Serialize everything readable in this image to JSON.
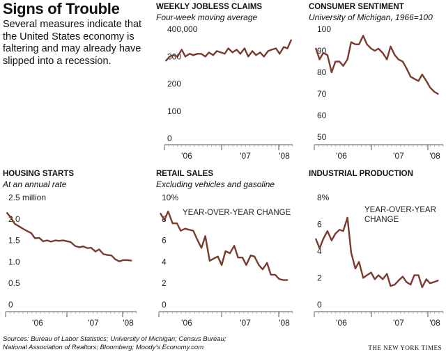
{
  "title": "Signs of Trouble",
  "intro": "Several measures indicate that the United States economy is faltering and may already have slipped into a recession.",
  "sources_line1": "Sources: Bureau of Labor Statistics; University of Michigan; Census Bureau;",
  "sources_line2": "National Association of Realtors; Bloomberg; Moody’s Economy.com",
  "credit": "THE NEW YORK TIMES",
  "line_color": "#7a3b2e",
  "chart_data": [
    {
      "id": "jobless",
      "type": "line",
      "title": "WEEKLY JOBLESS CLAIMS",
      "subtitle": "Four-week moving average",
      "ylim": [
        0,
        400000
      ],
      "yticks": [
        0,
        100,
        200,
        300,
        400000
      ],
      "ytick_labels": [
        "0",
        "100",
        "200",
        "300",
        "400,000"
      ],
      "xlim": [
        2005.75,
        2008.2
      ],
      "xtick_labels": [
        "'06",
        "'07",
        "'08"
      ],
      "x": [
        2005.78,
        2005.85,
        2005.92,
        2006.0,
        2006.08,
        2006.15,
        2006.23,
        2006.3,
        2006.38,
        2006.45,
        2006.53,
        2006.6,
        2006.68,
        2006.75,
        2006.83,
        2006.9,
        2006.97,
        2007.05,
        2007.13,
        2007.2,
        2007.28,
        2007.35,
        2007.43,
        2007.5,
        2007.58,
        2007.65,
        2007.73,
        2007.8,
        2007.88,
        2007.95,
        2008.03,
        2008.1,
        2008.17
      ],
      "values": [
        285000,
        300000,
        305000,
        300000,
        325000,
        300000,
        310000,
        305000,
        310000,
        310000,
        300000,
        315000,
        305000,
        320000,
        315000,
        310000,
        330000,
        315000,
        325000,
        310000,
        330000,
        300000,
        320000,
        305000,
        315000,
        300000,
        320000,
        325000,
        330000,
        310000,
        335000,
        330000,
        360000
      ]
    },
    {
      "id": "sentiment",
      "type": "line",
      "title": "CONSUMER SENTIMENT",
      "subtitle": "University of Michigan, 1966=100",
      "ylim": [
        50,
        100
      ],
      "yticks": [
        50,
        60,
        70,
        80,
        90,
        100
      ],
      "ytick_labels": [
        "50",
        "60",
        "70",
        "80",
        "90",
        "100"
      ],
      "xlim": [
        2005.75,
        2008.2
      ],
      "xtick_labels": [
        "'06",
        "'07",
        "'08"
      ],
      "x": [
        2005.78,
        2005.85,
        2005.92,
        2006.0,
        2006.08,
        2006.15,
        2006.23,
        2006.3,
        2006.38,
        2006.45,
        2006.53,
        2006.6,
        2006.68,
        2006.75,
        2006.83,
        2006.9,
        2006.97,
        2007.05,
        2007.13,
        2007.2,
        2007.28,
        2007.35,
        2007.43,
        2007.5,
        2007.58,
        2007.65,
        2007.73,
        2007.8,
        2007.88,
        2007.95,
        2008.03,
        2008.1
      ],
      "values": [
        91,
        86,
        89,
        88,
        80,
        85,
        85,
        83,
        86,
        94,
        93,
        93,
        97,
        93,
        91,
        90,
        91,
        89,
        86,
        92,
        88,
        86,
        85,
        82,
        78,
        77,
        76,
        79,
        76,
        73,
        71,
        70
      ]
    },
    {
      "id": "housing",
      "type": "line",
      "title": "HOUSING STARTS",
      "subtitle": "At an annual rate",
      "ylim": [
        0,
        2.5
      ],
      "yticks": [
        0,
        0.5,
        1.0,
        1.5,
        2.0,
        2.5
      ],
      "ytick_labels": [
        "0",
        "0.5",
        "1.0",
        "1.5",
        "2.0",
        "2.5 million"
      ],
      "xlim": [
        2005.75,
        2008.2
      ],
      "xtick_labels": [
        "'06",
        "'07",
        "'08"
      ],
      "x": [
        2005.78,
        2005.85,
        2005.92,
        2006.0,
        2006.08,
        2006.15,
        2006.23,
        2006.3,
        2006.38,
        2006.45,
        2006.53,
        2006.6,
        2006.68,
        2006.75,
        2006.83,
        2006.9,
        2006.97,
        2007.05,
        2007.13,
        2007.2,
        2007.28,
        2007.35,
        2007.43,
        2007.5,
        2007.58,
        2007.65,
        2007.73,
        2007.8,
        2007.88,
        2007.95,
        2008.03,
        2008.1
      ],
      "values": [
        2.14,
        2.03,
        1.89,
        1.83,
        1.77,
        1.72,
        1.67,
        1.55,
        1.56,
        1.48,
        1.5,
        1.47,
        1.5,
        1.49,
        1.5,
        1.48,
        1.46,
        1.37,
        1.34,
        1.36,
        1.32,
        1.33,
        1.24,
        1.29,
        1.18,
        1.16,
        1.15,
        1.06,
        1.01,
        1.04,
        1.04,
        1.03
      ]
    },
    {
      "id": "retail",
      "type": "line",
      "title": "RETAIL SALES",
      "subtitle": "Excluding vehicles and gasoline",
      "annotation": "YEAR-OVER-YEAR CHANGE",
      "ylim": [
        0,
        10
      ],
      "yticks": [
        0,
        2,
        4,
        6,
        8,
        10
      ],
      "ytick_labels": [
        "0",
        "2",
        "4",
        "6",
        "8",
        "10%"
      ],
      "xlim": [
        2005.75,
        2008.2
      ],
      "xtick_labels": [
        "'06",
        "'07",
        "'08"
      ],
      "x": [
        2005.78,
        2005.85,
        2005.92,
        2006.0,
        2006.08,
        2006.15,
        2006.23,
        2006.3,
        2006.38,
        2006.45,
        2006.53,
        2006.6,
        2006.68,
        2006.75,
        2006.83,
        2006.9,
        2006.97,
        2007.05,
        2007.13,
        2007.2,
        2007.28,
        2007.35,
        2007.43,
        2007.5,
        2007.58,
        2007.65,
        2007.73,
        2007.8,
        2007.88,
        2007.95,
        2008.03,
        2008.1
      ],
      "values": [
        8.5,
        7.9,
        8.7,
        7.6,
        7.6,
        6.9,
        7.1,
        7.0,
        6.9,
        6.1,
        5.3,
        6.4,
        4.1,
        4.3,
        4.5,
        3.7,
        5.0,
        4.8,
        5.5,
        4.4,
        4.4,
        3.7,
        4.6,
        4.5,
        3.7,
        3.3,
        3.9,
        2.8,
        2.8,
        2.4,
        2.3,
        2.3
      ]
    },
    {
      "id": "industrial",
      "type": "line",
      "title": "INDUSTRIAL PRODUCTION",
      "subtitle": "",
      "annotation": "YEAR-OVER-YEAR CHANGE",
      "ylim": [
        0,
        8
      ],
      "yticks": [
        0,
        2,
        4,
        6,
        8
      ],
      "ytick_labels": [
        "0",
        "2",
        "4",
        "6",
        "8%"
      ],
      "xlim": [
        2005.75,
        2008.2
      ],
      "xtick_labels": [
        "'06",
        "'07",
        "'08"
      ],
      "x": [
        2005.78,
        2005.85,
        2005.92,
        2006.0,
        2006.08,
        2006.15,
        2006.23,
        2006.3,
        2006.38,
        2006.45,
        2006.53,
        2006.6,
        2006.68,
        2006.75,
        2006.83,
        2006.9,
        2006.97,
        2007.05,
        2007.13,
        2007.2,
        2007.28,
        2007.35,
        2007.43,
        2007.5,
        2007.58,
        2007.65,
        2007.73,
        2007.8,
        2007.88,
        2007.95,
        2008.03,
        2008.1
      ],
      "values": [
        4.9,
        4.2,
        4.9,
        5.5,
        4.8,
        5.3,
        5.6,
        5.5,
        6.5,
        3.9,
        2.7,
        3.2,
        2.0,
        2.2,
        2.4,
        1.9,
        2.2,
        1.9,
        2.3,
        1.4,
        1.5,
        1.8,
        2.1,
        1.7,
        1.5,
        2.2,
        2.2,
        1.3,
        1.9,
        1.6,
        1.7,
        1.8
      ]
    }
  ]
}
